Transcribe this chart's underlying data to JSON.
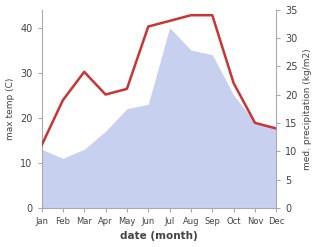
{
  "months": [
    "Jan",
    "Feb",
    "Mar",
    "Apr",
    "May",
    "Jun",
    "Jul",
    "Aug",
    "Sep",
    "Oct",
    "Nov",
    "Dec"
  ],
  "max_temp": [
    13,
    11,
    13,
    17,
    22,
    23,
    40,
    35,
    34,
    25,
    19,
    18
  ],
  "precipitation": [
    11,
    19,
    24,
    20,
    21,
    32,
    33,
    34,
    34,
    22,
    15,
    14
  ],
  "temp_ylim": [
    0,
    44
  ],
  "precip_ylim": [
    0,
    35
  ],
  "fill_color": "#c8d0f0",
  "line_color": "#cc3333",
  "ylabel_left": "max temp (C)",
  "ylabel_right": "med. precipitation (kg/m2)",
  "xlabel": "date (month)",
  "bg_color": "#ffffff",
  "tick_color": "#444444",
  "temp_yticks": [
    0,
    10,
    20,
    30,
    40
  ],
  "precip_yticks": [
    0,
    5,
    10,
    15,
    20,
    25,
    30,
    35
  ]
}
